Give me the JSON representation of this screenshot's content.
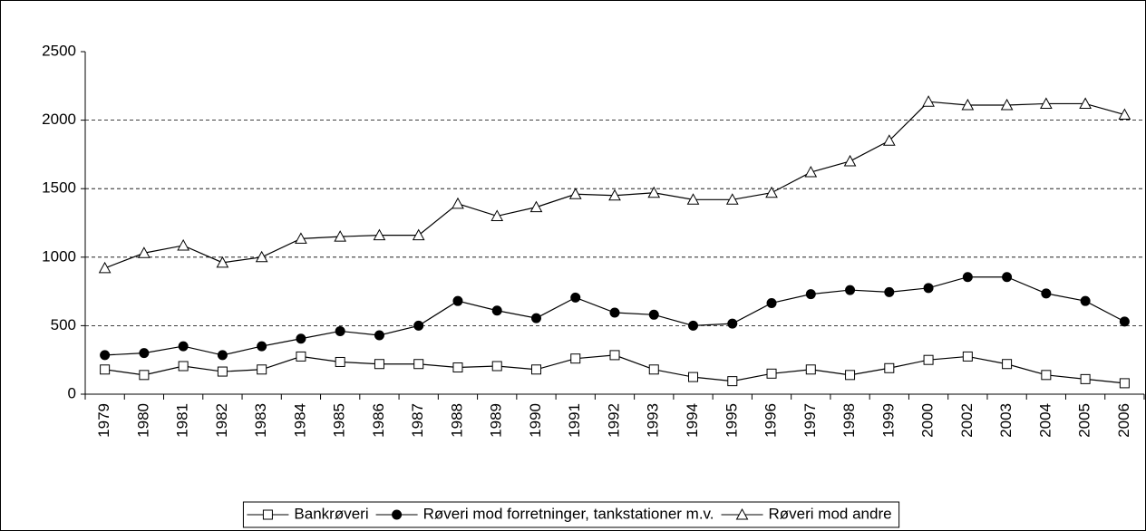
{
  "chart_data": {
    "type": "line",
    "categories": [
      "1979",
      "1980",
      "1981",
      "1982",
      "1983",
      "1984",
      "1985",
      "1986",
      "1987",
      "1988",
      "1989",
      "1990",
      "1991",
      "1992",
      "1993",
      "1994",
      "1995",
      "1996",
      "1997",
      "1998",
      "1999",
      "2000",
      "2002",
      "2003",
      "2004",
      "2005",
      "2006"
    ],
    "series": [
      {
        "name": "Bankrøveri",
        "color": "#000000",
        "marker": "square",
        "values": [
          180,
          140,
          205,
          165,
          180,
          275,
          235,
          220,
          220,
          195,
          205,
          180,
          260,
          285,
          180,
          125,
          95,
          150,
          180,
          140,
          190,
          250,
          275,
          220,
          140,
          110,
          80
        ]
      },
      {
        "name": "Røveri mod forretninger, tankstationer m.v.",
        "color": "#000000",
        "marker": "circle",
        "values": [
          285,
          300,
          350,
          285,
          350,
          405,
          460,
          430,
          500,
          680,
          610,
          555,
          705,
          595,
          580,
          500,
          515,
          665,
          730,
          760,
          745,
          775,
          855,
          855,
          735,
          680,
          530
        ]
      },
      {
        "name": "Røveri mod andre",
        "color": "#000000",
        "marker": "triangle",
        "values": [
          920,
          1030,
          1085,
          960,
          1000,
          1135,
          1150,
          1160,
          1160,
          1390,
          1300,
          1365,
          1460,
          1450,
          1470,
          1420,
          1420,
          1470,
          1620,
          1700,
          1850,
          2135,
          2110,
          2110,
          2120,
          2120,
          2040
        ]
      }
    ],
    "ylim": [
      0,
      2500
    ],
    "yticks": [
      0,
      500,
      1000,
      1500,
      2000,
      2500
    ],
    "grid": true,
    "legend": "bottom"
  }
}
